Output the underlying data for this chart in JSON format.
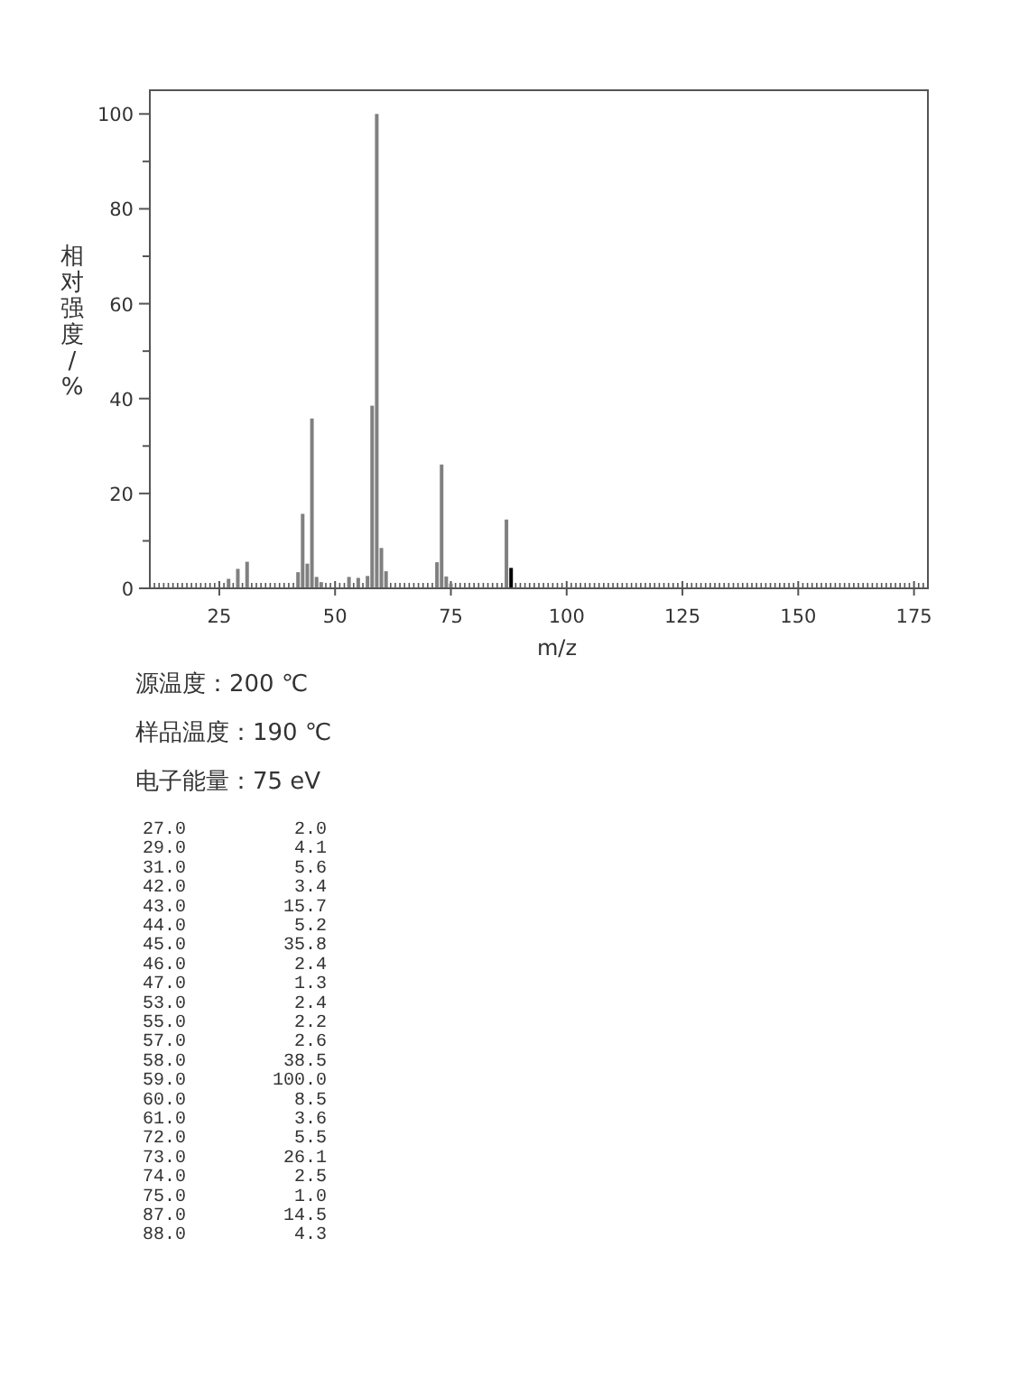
{
  "chart_data": [
    {
      "type": "bar",
      "xlabel": "m/z",
      "ylabel": "相对强度/%",
      "annotations": [
        "源温度：200 ℃",
        "样品温度：190 ℃",
        "电子能量：75 eV"
      ],
      "x": [
        27,
        29,
        31,
        42,
        43,
        44,
        45,
        46,
        47,
        53,
        55,
        57,
        58,
        59,
        60,
        61,
        72,
        73,
        74,
        75,
        87,
        88
      ],
      "values": [
        2.0,
        4.1,
        5.6,
        3.4,
        15.7,
        5.2,
        35.8,
        2.4,
        1.3,
        2.4,
        2.2,
        2.6,
        38.5,
        100.0,
        8.5,
        3.6,
        5.5,
        26.1,
        2.5,
        1.0,
        14.5,
        4.3
      ],
      "colors": [
        "#808080",
        "#808080",
        "#808080",
        "#808080",
        "#808080",
        "#808080",
        "#808080",
        "#808080",
        "#808080",
        "#808080",
        "#808080",
        "#808080",
        "#808080",
        "#808080",
        "#808080",
        "#808080",
        "#808080",
        "#808080",
        "#808080",
        "#808080",
        "#808080",
        "#000000"
      ],
      "xlim": [
        10,
        178
      ],
      "ylim": [
        0,
        105
      ],
      "yticks": [
        0,
        {
          "value": 10,
          "label": null
        },
        20,
        {
          "value": 30,
          "label": null
        },
        40,
        {
          "value": 50,
          "label": null
        },
        60,
        {
          "value": 70,
          "label": null
        },
        80,
        {
          "value": 90,
          "label": null
        },
        100
      ],
      "xticks": [
        {
          "value": 11,
          "label": null
        },
        {
          "value": 12,
          "label": null
        },
        {
          "value": 13,
          "label": null
        },
        {
          "value": 14,
          "label": null
        },
        {
          "value": 15,
          "label": null
        },
        {
          "value": 16,
          "label": null
        },
        {
          "value": 17,
          "label": null
        },
        {
          "value": 18,
          "label": null
        },
        {
          "value": 19,
          "label": null
        },
        {
          "value": 20,
          "label": null
        },
        {
          "value": 21,
          "label": null
        },
        {
          "value": 22,
          "label": null
        },
        {
          "value": 23,
          "label": null
        },
        {
          "value": 24,
          "label": null
        },
        25,
        {
          "value": 26,
          "label": null
        },
        {
          "value": 27,
          "label": null
        },
        {
          "value": 28,
          "label": null
        },
        {
          "value": 29,
          "label": null
        },
        {
          "value": 30,
          "label": null
        },
        {
          "value": 31,
          "label": null
        },
        {
          "value": 32,
          "label": null
        },
        {
          "value": 33,
          "label": null
        },
        {
          "value": 34,
          "label": null
        },
        {
          "value": 35,
          "label": null
        },
        {
          "value": 36,
          "label": null
        },
        {
          "value": 37,
          "label": null
        },
        {
          "value": 38,
          "label": null
        },
        {
          "value": 39,
          "label": null
        },
        {
          "value": 40,
          "label": null
        },
        {
          "value": 41,
          "label": null
        },
        {
          "value": 42,
          "label": null
        },
        {
          "value": 43,
          "label": null
        },
        {
          "value": 44,
          "label": null
        },
        {
          "value": 45,
          "label": null
        },
        {
          "value": 46,
          "label": null
        },
        {
          "value": 47,
          "label": null
        },
        {
          "value": 48,
          "label": null
        },
        {
          "value": 49,
          "label": null
        },
        50,
        {
          "value": 51,
          "label": null
        },
        {
          "value": 52,
          "label": null
        },
        {
          "value": 53,
          "label": null
        },
        {
          "value": 54,
          "label": null
        },
        {
          "value": 55,
          "label": null
        },
        {
          "value": 56,
          "label": null
        },
        {
          "value": 57,
          "label": null
        },
        {
          "value": 58,
          "label": null
        },
        {
          "value": 59,
          "label": null
        },
        {
          "value": 60,
          "label": null
        },
        {
          "value": 61,
          "label": null
        },
        {
          "value": 62,
          "label": null
        },
        {
          "value": 63,
          "label": null
        },
        {
          "value": 64,
          "label": null
        },
        {
          "value": 65,
          "label": null
        },
        {
          "value": 66,
          "label": null
        },
        {
          "value": 67,
          "label": null
        },
        {
          "value": 68,
          "label": null
        },
        {
          "value": 69,
          "label": null
        },
        {
          "value": 70,
          "label": null
        },
        {
          "value": 71,
          "label": null
        },
        {
          "value": 72,
          "label": null
        },
        {
          "value": 73,
          "label": null
        },
        {
          "value": 74,
          "label": null
        },
        75,
        {
          "value": 76,
          "label": null
        },
        {
          "value": 77,
          "label": null
        },
        {
          "value": 78,
          "label": null
        },
        {
          "value": 79,
          "label": null
        },
        {
          "value": 80,
          "label": null
        },
        {
          "value": 81,
          "label": null
        },
        {
          "value": 82,
          "label": null
        },
        {
          "value": 83,
          "label": null
        },
        {
          "value": 84,
          "label": null
        },
        {
          "value": 85,
          "label": null
        },
        {
          "value": 86,
          "label": null
        },
        {
          "value": 87,
          "label": null
        },
        {
          "value": 88,
          "label": null
        },
        {
          "value": 89,
          "label": null
        },
        {
          "value": 90,
          "label": null
        },
        {
          "value": 91,
          "label": null
        },
        {
          "value": 92,
          "label": null
        },
        {
          "value": 93,
          "label": null
        },
        {
          "value": 94,
          "label": null
        },
        {
          "value": 95,
          "label": null
        },
        {
          "value": 96,
          "label": null
        },
        {
          "value": 97,
          "label": null
        },
        {
          "value": 98,
          "label": null
        },
        {
          "value": 99,
          "label": null
        },
        100,
        {
          "value": 101,
          "label": null
        },
        {
          "value": 102,
          "label": null
        },
        {
          "value": 103,
          "label": null
        },
        {
          "value": 104,
          "label": null
        },
        {
          "value": 105,
          "label": null
        },
        {
          "value": 106,
          "label": null
        },
        {
          "value": 107,
          "label": null
        },
        {
          "value": 108,
          "label": null
        },
        {
          "value": 109,
          "label": null
        },
        {
          "value": 110,
          "label": null
        },
        {
          "value": 111,
          "label": null
        },
        {
          "value": 112,
          "label": null
        },
        {
          "value": 113,
          "label": null
        },
        {
          "value": 114,
          "label": null
        },
        {
          "value": 115,
          "label": null
        },
        {
          "value": 116,
          "label": null
        },
        {
          "value": 117,
          "label": null
        },
        {
          "value": 118,
          "label": null
        },
        {
          "value": 119,
          "label": null
        },
        {
          "value": 120,
          "label": null
        },
        {
          "value": 121,
          "label": null
        },
        {
          "value": 122,
          "label": null
        },
        {
          "value": 123,
          "label": null
        },
        {
          "value": 124,
          "label": null
        },
        125,
        {
          "value": 126,
          "label": null
        },
        {
          "value": 127,
          "label": null
        },
        {
          "value": 128,
          "label": null
        },
        {
          "value": 129,
          "label": null
        },
        {
          "value": 130,
          "label": null
        },
        {
          "value": 131,
          "label": null
        },
        {
          "value": 132,
          "label": null
        },
        {
          "value": 133,
          "label": null
        },
        {
          "value": 134,
          "label": null
        },
        {
          "value": 135,
          "label": null
        },
        {
          "value": 136,
          "label": null
        },
        {
          "value": 137,
          "label": null
        },
        {
          "value": 138,
          "label": null
        },
        {
          "value": 139,
          "label": null
        },
        {
          "value": 140,
          "label": null
        },
        {
          "value": 141,
          "label": null
        },
        {
          "value": 142,
          "label": null
        },
        {
          "value": 143,
          "label": null
        },
        {
          "value": 144,
          "label": null
        },
        {
          "value": 145,
          "label": null
        },
        {
          "value": 146,
          "label": null
        },
        {
          "value": 147,
          "label": null
        },
        {
          "value": 148,
          "label": null
        },
        {
          "value": 149,
          "label": null
        },
        150,
        {
          "value": 151,
          "label": null
        },
        {
          "value": 152,
          "label": null
        },
        {
          "value": 153,
          "label": null
        },
        {
          "value": 154,
          "label": null
        },
        {
          "value": 155,
          "label": null
        },
        {
          "value": 156,
          "label": null
        },
        {
          "value": 157,
          "label": null
        },
        {
          "value": 158,
          "label": null
        },
        {
          "value": 159,
          "label": null
        },
        {
          "value": 160,
          "label": null
        },
        {
          "value": 161,
          "label": null
        },
        {
          "value": 162,
          "label": null
        },
        {
          "value": 163,
          "label": null
        },
        {
          "value": 164,
          "label": null
        },
        {
          "value": 165,
          "label": null
        },
        {
          "value": 166,
          "label": null
        },
        {
          "value": 167,
          "label": null
        },
        {
          "value": 168,
          "label": null
        },
        {
          "value": 169,
          "label": null
        },
        {
          "value": 170,
          "label": null
        },
        {
          "value": 171,
          "label": null
        },
        {
          "value": 172,
          "label": null
        },
        {
          "value": 173,
          "label": null
        },
        {
          "value": 174,
          "label": null
        },
        175,
        {
          "value": 176,
          "label": null
        },
        {
          "value": 177,
          "label": null
        }
      ]
    },
    {
      "type": "other",
      "annotations": [
        "27.0          2.0",
        "29.0          4.1",
        "31.0          5.6",
        "42.0          3.4",
        "43.0         15.7",
        "44.0          5.2",
        "45.0         35.8",
        "46.0          2.4",
        "47.0          1.3",
        "53.0          2.4",
        "55.0          2.2",
        "57.0          2.6",
        "58.0         38.5",
        "59.0        100.0",
        "60.0          8.5",
        "61.0          3.6",
        "72.0          5.5",
        "73.0         26.1",
        "74.0          2.5",
        "75.0          1.0",
        "87.0         14.5",
        "88.0          4.3"
      ]
    }
  ]
}
